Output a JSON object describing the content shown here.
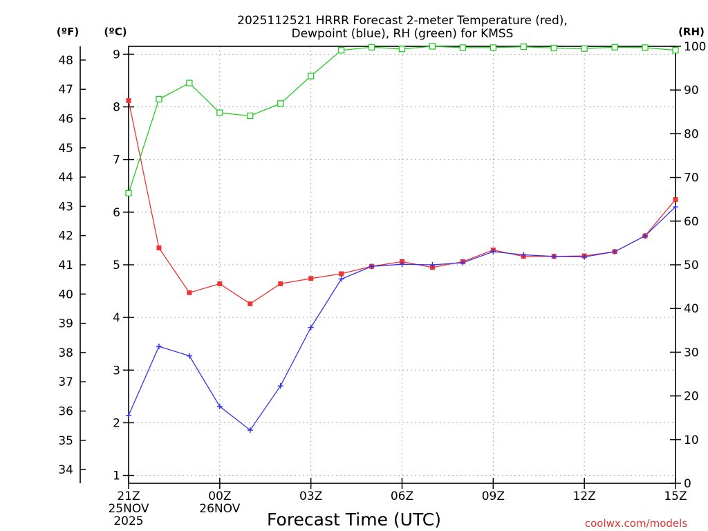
{
  "chart_data": {
    "type": "line",
    "title_line1": "2025112521 HRRR Forecast 2-meter Temperature (red),",
    "title_line2": "Dewpoint (blue), RH (green) for KMSS",
    "xlabel": "Forecast Time (UTC)",
    "credit": "coolwx.com/models",
    "units": {
      "fahrenheit": "(ºF)",
      "celsius": "(ºC)",
      "rh": "(RH)"
    },
    "x_hours": [
      0,
      1,
      2,
      3,
      4,
      5,
      6,
      7,
      8,
      9,
      10,
      11,
      12,
      13,
      14,
      15,
      16,
      17,
      18
    ],
    "xlim": [
      0,
      18
    ],
    "ylim_c": [
      0.85,
      9.15
    ],
    "ylim_rh": [
      0,
      100
    ],
    "x_ticks": [
      {
        "hour": 0,
        "lines": [
          "21Z",
          "25NOV",
          "2025"
        ]
      },
      {
        "hour": 3,
        "lines": [
          "00Z",
          "26NOV"
        ]
      },
      {
        "hour": 6,
        "lines": [
          "03Z"
        ]
      },
      {
        "hour": 9,
        "lines": [
          "06Z"
        ]
      },
      {
        "hour": 12,
        "lines": [
          "09Z"
        ]
      },
      {
        "hour": 15,
        "lines": [
          "12Z"
        ]
      },
      {
        "hour": 18,
        "lines": [
          "15Z"
        ]
      }
    ],
    "celsius_ticks": [
      "1",
      "2",
      "3",
      "4",
      "5",
      "6",
      "7",
      "8",
      "9"
    ],
    "fahrenheit_ticks": [
      "34",
      "35",
      "36",
      "37",
      "38",
      "39",
      "40",
      "41",
      "42",
      "43",
      "44",
      "45",
      "46",
      "47",
      "48"
    ],
    "rh_ticks": [
      "0",
      "10",
      "20",
      "30",
      "40",
      "50",
      "60",
      "70",
      "80",
      "90",
      "100"
    ],
    "series": [
      {
        "name": "Temperature",
        "axis": "celsius",
        "color": "#ee3333",
        "marker": "filled-square",
        "values": [
          8.12,
          5.32,
          4.47,
          4.64,
          4.26,
          4.64,
          4.74,
          4.83,
          4.97,
          5.06,
          4.95,
          5.06,
          5.28,
          5.16,
          5.16,
          5.17,
          5.25,
          5.55,
          6.24
        ]
      },
      {
        "name": "Dewpoint",
        "axis": "celsius",
        "color": "#3333ee",
        "marker": "plus",
        "values": [
          2.14,
          3.45,
          3.27,
          2.31,
          1.86,
          2.7,
          3.81,
          4.73,
          4.97,
          5.01,
          5.0,
          5.04,
          5.25,
          5.19,
          5.16,
          5.15,
          5.25,
          5.55,
          6.1
        ]
      },
      {
        "name": "RH",
        "axis": "rh",
        "color": "#22cc22",
        "marker": "open-square",
        "values": [
          66.4,
          87.9,
          91.6,
          84.8,
          84.1,
          86.9,
          93.2,
          99.1,
          99.8,
          99.4,
          100,
          99.7,
          99.7,
          99.9,
          99.6,
          99.5,
          99.8,
          99.7,
          99.1
        ]
      }
    ]
  }
}
